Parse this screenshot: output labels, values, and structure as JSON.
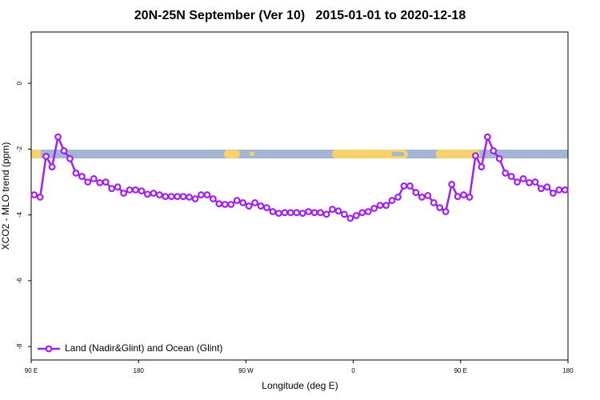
{
  "chart_data": {
    "type": "line",
    "title": "20N-25N September (Ver 10)   2015-01-01 to 2020-12-18",
    "x_label": "Longitude (deg E)",
    "y_label": "XCO2 - MLO trend (ppm)",
    "xlim": [
      90,
      540
    ],
    "ylim": [
      -8.41,
      1.56
    ],
    "xticks": [
      {
        "value": 90,
        "label": "90 E"
      },
      {
        "value": 180,
        "label": "180"
      },
      {
        "value": 270,
        "label": "90 W"
      },
      {
        "value": 360,
        "label": "0"
      },
      {
        "value": 450,
        "label": "90 E"
      },
      {
        "value": 540,
        "label": "180"
      }
    ],
    "yticks": [
      -8,
      -6,
      -4,
      -2,
      0
    ],
    "legend_position": "bottom-left",
    "x": [
      92.5,
      97.5,
      102.5,
      107.5,
      112.5,
      117.5,
      122.5,
      127.5,
      132.5,
      137.5,
      142.5,
      147.5,
      152.5,
      157.5,
      162.5,
      167.5,
      172.5,
      177.5,
      182.5,
      187.5,
      192.5,
      197.5,
      202.5,
      207.5,
      212.5,
      217.5,
      222.5,
      227.5,
      232.5,
      237.5,
      242.5,
      247.5,
      252.5,
      257.5,
      262.5,
      267.5,
      272.5,
      277.5,
      282.5,
      287.5,
      292.5,
      297.5,
      302.5,
      307.5,
      312.5,
      317.5,
      322.5,
      327.5,
      332.5,
      337.5,
      342.5,
      347.5,
      352.5,
      357.5,
      362.5,
      367.5,
      372.5,
      377.5,
      382.5,
      387.5,
      392.5,
      397.5,
      402.5,
      407.5,
      412.5,
      417.5,
      422.5,
      427.5,
      432.5,
      437.5,
      442.5,
      447.5,
      452.5,
      457.5,
      462.5,
      467.5,
      472.5,
      477.5,
      482.5,
      487.5,
      492.5,
      497.5,
      502.5,
      507.5,
      512.5,
      517.5,
      522.5,
      527.5,
      532.5,
      537.5
    ],
    "series": [
      {
        "name": "Land (Nadir&Glint) and Ocean (Glint)",
        "color": "#a020f0",
        "values": [
          -3.39,
          -3.46,
          -2.22,
          -2.54,
          -1.63,
          -2.05,
          -2.29,
          -2.73,
          -2.83,
          -3.0,
          -2.9,
          -3.02,
          -3.0,
          -3.2,
          -3.15,
          -3.34,
          -3.24,
          -3.24,
          -3.27,
          -3.37,
          -3.34,
          -3.39,
          -3.44,
          -3.44,
          -3.44,
          -3.44,
          -3.46,
          -3.51,
          -3.39,
          -3.39,
          -3.51,
          -3.66,
          -3.68,
          -3.68,
          -3.56,
          -3.63,
          -3.73,
          -3.63,
          -3.73,
          -3.78,
          -3.9,
          -3.95,
          -3.93,
          -3.93,
          -3.93,
          -3.95,
          -3.9,
          -3.93,
          -3.93,
          -3.98,
          -3.83,
          -3.88,
          -3.98,
          -4.1,
          -4.02,
          -3.93,
          -3.9,
          -3.8,
          -3.71,
          -3.71,
          -3.56,
          -3.46,
          -3.12,
          -3.12,
          -3.32,
          -3.46,
          -3.41,
          -3.63,
          -3.78,
          -3.9,
          -3.07,
          -3.44,
          -3.39,
          -3.46,
          -2.2,
          -2.54,
          -1.63,
          -2.05,
          -2.29,
          -2.73,
          -2.83,
          -3.0,
          -2.9,
          -3.02,
          -3.0,
          -3.2,
          -3.15,
          -3.34,
          -3.24,
          -3.24
        ]
      }
    ]
  }
}
